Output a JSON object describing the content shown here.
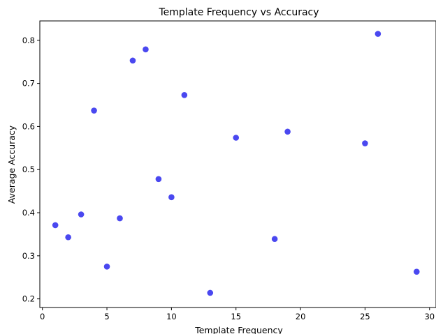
{
  "chart_data": {
    "type": "scatter",
    "title": "Template Frequency vs Accuracy",
    "xlabel": "Template Frequency",
    "ylabel": "Average Accuracy",
    "xlim": [
      -0.2,
      30.5
    ],
    "ylim": [
      0.18,
      0.845
    ],
    "xticks": [
      0,
      5,
      10,
      15,
      20,
      25,
      30
    ],
    "yticks": [
      0.2,
      0.3,
      0.4,
      0.5,
      0.6,
      0.7,
      0.8
    ],
    "ytick_labels": [
      "0.2",
      "0.3",
      "0.4",
      "0.5",
      "0.6",
      "0.7",
      "0.8"
    ],
    "grid": false,
    "color": "#4a48f0",
    "series": [
      {
        "x": [
          1,
          2,
          3,
          4,
          5,
          6,
          7,
          8,
          9,
          10,
          11,
          13,
          15,
          18,
          19,
          25,
          26,
          29
        ],
        "y": [
          0.371,
          0.343,
          0.396,
          0.637,
          0.275,
          0.387,
          0.753,
          0.779,
          0.478,
          0.436,
          0.673,
          0.214,
          0.574,
          0.339,
          0.588,
          0.561,
          0.815,
          0.263
        ]
      }
    ]
  }
}
